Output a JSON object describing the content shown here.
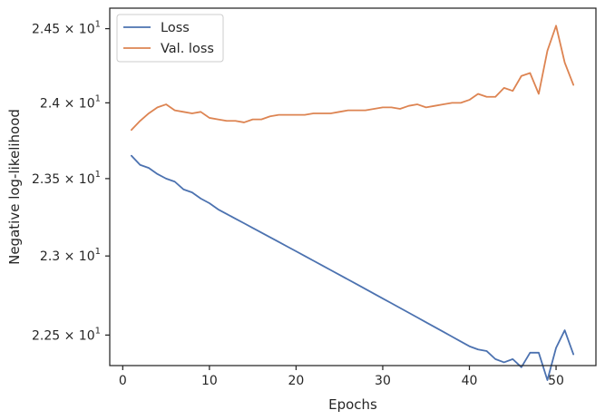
{
  "chart_data": {
    "type": "line",
    "xlabel": "Epochs",
    "ylabel": "Negative log-likelihood",
    "xlim": [
      -1.5,
      54.6
    ],
    "ylim": [
      22.31,
      24.64
    ],
    "y_scale": "log",
    "x_ticks": [
      0,
      10,
      20,
      30,
      40,
      50
    ],
    "x_tick_labels": [
      "0",
      "10",
      "20",
      "30",
      "40",
      "50"
    ],
    "y_ticks": [
      22.5,
      23.0,
      23.5,
      24.0,
      24.5
    ],
    "y_tick_labels": [
      {
        "mantissa": "2.25",
        "base": "10",
        "exp": "1"
      },
      {
        "mantissa": "2.3",
        "base": "10",
        "exp": "1"
      },
      {
        "mantissa": "2.35",
        "base": "10",
        "exp": "1"
      },
      {
        "mantissa": "2.4",
        "base": "10",
        "exp": "1"
      },
      {
        "mantissa": "2.45",
        "base": "10",
        "exp": "1"
      }
    ],
    "grid": false,
    "legend_position": "top-left",
    "x": [
      1,
      2,
      3,
      4,
      5,
      6,
      7,
      8,
      9,
      10,
      11,
      12,
      13,
      14,
      15,
      16,
      17,
      18,
      19,
      20,
      21,
      22,
      23,
      24,
      25,
      26,
      27,
      28,
      29,
      30,
      31,
      32,
      33,
      34,
      35,
      36,
      37,
      38,
      39,
      40,
      41,
      42,
      43,
      44,
      45,
      46,
      47,
      48,
      49,
      50,
      51,
      52
    ],
    "series": [
      {
        "name": "Loss",
        "color": "#4c72b0",
        "values": [
          23.65,
          23.59,
          23.57,
          23.53,
          23.5,
          23.48,
          23.43,
          23.41,
          23.37,
          23.34,
          23.3,
          23.27,
          23.24,
          23.21,
          23.18,
          23.15,
          23.12,
          23.09,
          23.06,
          23.03,
          23.0,
          22.97,
          22.94,
          22.91,
          22.88,
          22.85,
          22.82,
          22.79,
          22.76,
          22.73,
          22.7,
          22.67,
          22.64,
          22.61,
          22.58,
          22.55,
          22.52,
          22.49,
          22.46,
          22.43,
          22.41,
          22.4,
          22.35,
          22.33,
          22.35,
          22.3,
          22.39,
          22.39,
          22.22,
          22.42,
          22.53,
          22.38
        ]
      },
      {
        "name": "Val. loss",
        "color": "#dd8452",
        "values": [
          23.82,
          23.88,
          23.93,
          23.97,
          23.99,
          23.95,
          23.94,
          23.93,
          23.94,
          23.9,
          23.89,
          23.88,
          23.88,
          23.87,
          23.89,
          23.89,
          23.91,
          23.92,
          23.92,
          23.92,
          23.92,
          23.93,
          23.93,
          23.93,
          23.94,
          23.95,
          23.95,
          23.95,
          23.96,
          23.97,
          23.97,
          23.96,
          23.98,
          23.99,
          23.97,
          23.98,
          23.99,
          24.0,
          24.0,
          24.02,
          24.06,
          24.04,
          24.04,
          24.1,
          24.08,
          24.18,
          24.2,
          24.06,
          24.35,
          24.52,
          24.27,
          24.12
        ]
      }
    ]
  }
}
